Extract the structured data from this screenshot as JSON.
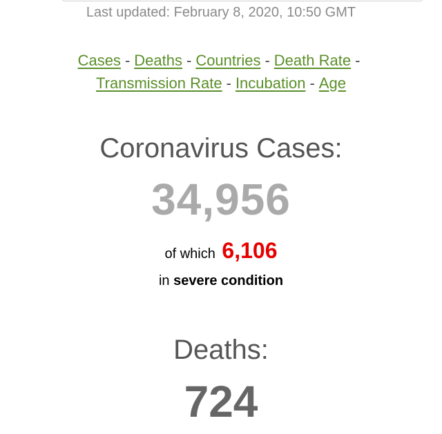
{
  "header": {
    "last_updated": "Last updated: February 8, 2020, 10:50 GMT"
  },
  "nav": {
    "links": [
      {
        "label": "Cases"
      },
      {
        "label": "Deaths"
      },
      {
        "label": "Countries"
      },
      {
        "label": "Death Rate"
      },
      {
        "label": "Transmission Rate"
      },
      {
        "label": "Incubation"
      },
      {
        "label": "Age"
      }
    ],
    "separator": "-"
  },
  "cases": {
    "title": "Coronavirus Cases:",
    "count": "34,956",
    "of_which_label": "of which",
    "severe_count": "6,106",
    "in_label": "in",
    "severe_label": "severe condition"
  },
  "deaths": {
    "title": "Deaths:",
    "count": "724"
  },
  "colors": {
    "link": "#5a8f29",
    "severe": "#e60000",
    "cases_number": "#aaaaaa",
    "deaths_number": "#666666"
  }
}
